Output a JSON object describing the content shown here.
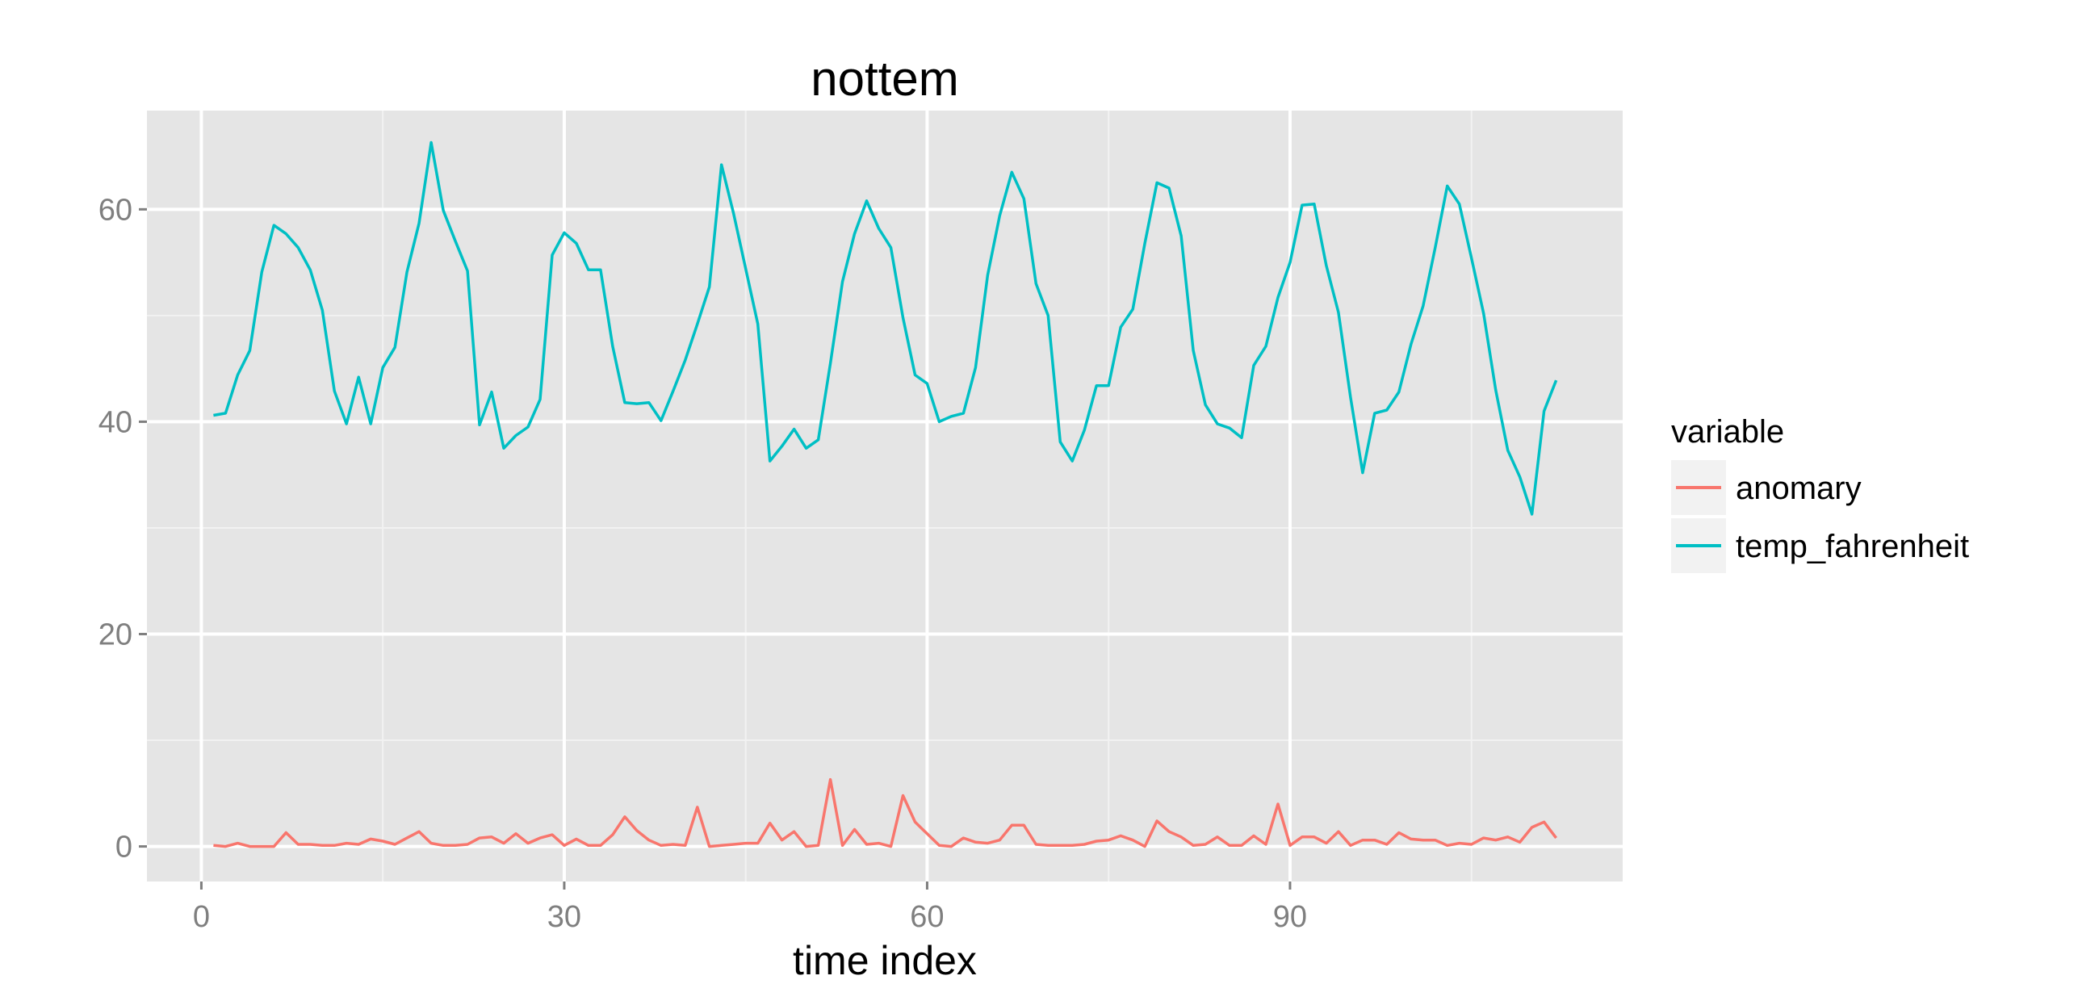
{
  "chart_data": {
    "type": "line",
    "title": "nottem",
    "xlabel": "time index",
    "ylabel": "",
    "xlim": [
      -4.5,
      117.5
    ],
    "ylim": [
      -3.3,
      69.3
    ],
    "x_ticks": [
      0,
      30,
      60,
      90
    ],
    "x_tick_labels": [
      "0",
      "30",
      "60",
      "90"
    ],
    "y_ticks": [
      0,
      20,
      40,
      60
    ],
    "y_tick_labels": [
      "0",
      "20",
      "40",
      "60"
    ],
    "grid": true,
    "legend": {
      "title": "variable",
      "position": "right"
    },
    "series": [
      {
        "name": "anomary",
        "color": "#F8766D",
        "values": [
          0.1,
          0.0,
          0.3,
          0.0,
          0.0,
          0.0,
          1.3,
          0.2,
          0.2,
          0.1,
          0.1,
          0.3,
          0.2,
          0.7,
          0.5,
          0.2,
          0.8,
          1.4,
          0.3,
          0.1,
          0.1,
          0.2,
          0.8,
          0.9,
          0.3,
          1.2,
          0.3,
          0.8,
          1.1,
          0.1,
          0.7,
          0.1,
          0.1,
          1.1,
          2.8,
          1.5,
          0.6,
          0.1,
          0.2,
          0.1,
          3.7,
          0.0,
          0.1,
          0.2,
          0.3,
          0.3,
          2.2,
          0.6,
          1.4,
          0.0,
          0.1,
          6.3,
          0.1,
          1.6,
          0.2,
          0.3,
          0.0,
          4.8,
          2.3,
          1.2,
          0.1,
          0.0,
          0.8,
          0.4,
          0.3,
          0.6,
          2.0,
          2.0,
          0.2,
          0.1,
          0.1,
          0.1,
          0.2,
          0.5,
          0.6,
          1.0,
          0.6,
          0.0,
          2.4,
          1.4,
          0.9,
          0.1,
          0.2,
          0.9,
          0.1,
          0.1,
          1.0,
          0.2,
          4.0,
          0.1,
          0.9,
          0.9,
          0.3,
          1.4,
          0.1,
          0.6,
          0.6,
          0.2,
          1.3,
          0.7,
          0.6,
          0.6,
          0.1,
          0.3,
          0.2,
          0.8,
          0.6,
          0.9,
          0.4,
          1.8,
          2.3,
          0.8
        ]
      },
      {
        "name": "temp_fahrenheit",
        "color": "#00BFC4",
        "values": [
          40.6,
          40.8,
          44.4,
          46.7,
          54.1,
          58.5,
          57.7,
          56.4,
          54.3,
          50.5,
          42.9,
          39.8,
          44.2,
          39.8,
          45.1,
          47.0,
          54.1,
          58.7,
          66.3,
          59.9,
          57.0,
          54.2,
          39.7,
          42.8,
          37.5,
          38.7,
          39.5,
          42.1,
          55.7,
          57.8,
          56.8,
          54.3,
          54.3,
          47.1,
          41.8,
          41.7,
          41.8,
          40.1,
          42.9,
          45.8,
          49.2,
          52.7,
          64.2,
          59.6,
          54.4,
          49.2,
          36.3,
          37.7,
          39.3,
          37.5,
          38.3,
          45.5,
          53.2,
          57.7,
          60.8,
          58.2,
          56.4,
          49.8,
          44.4,
          43.6,
          40.0,
          40.5,
          40.8,
          45.1,
          53.8,
          59.4,
          63.5,
          61.0,
          53.0,
          50.0,
          38.1,
          36.3,
          39.2,
          43.4,
          43.4,
          48.9,
          50.6,
          56.8,
          62.5,
          62.0,
          57.5,
          46.7,
          41.6,
          39.8,
          39.4,
          38.5,
          45.3,
          47.1,
          51.7,
          55.0,
          60.4,
          60.5,
          54.7,
          50.3,
          42.3,
          35.2,
          40.8,
          41.1,
          42.8,
          47.3,
          50.9,
          56.4,
          62.2,
          60.5,
          55.4,
          50.2,
          43.0,
          37.3,
          34.8,
          31.3,
          41.0,
          43.9
        ]
      }
    ]
  }
}
